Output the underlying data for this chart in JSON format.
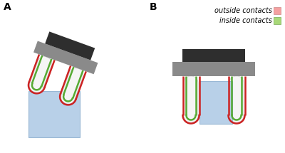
{
  "bg_color": "#ffffff",
  "label_A": "A",
  "label_B": "B",
  "legend_outside": "outside contacts",
  "legend_inside": "inside contacts",
  "outside_color": "#f4a0a0",
  "inside_color": "#a8d878",
  "red_color": "#cc2222",
  "green_color": "#55aa33",
  "dark_color": "#2e2e2e",
  "gray_color": "#8a8a8a",
  "blue_color": "#b8d0e8",
  "finger_fill": "#f5f5f5"
}
